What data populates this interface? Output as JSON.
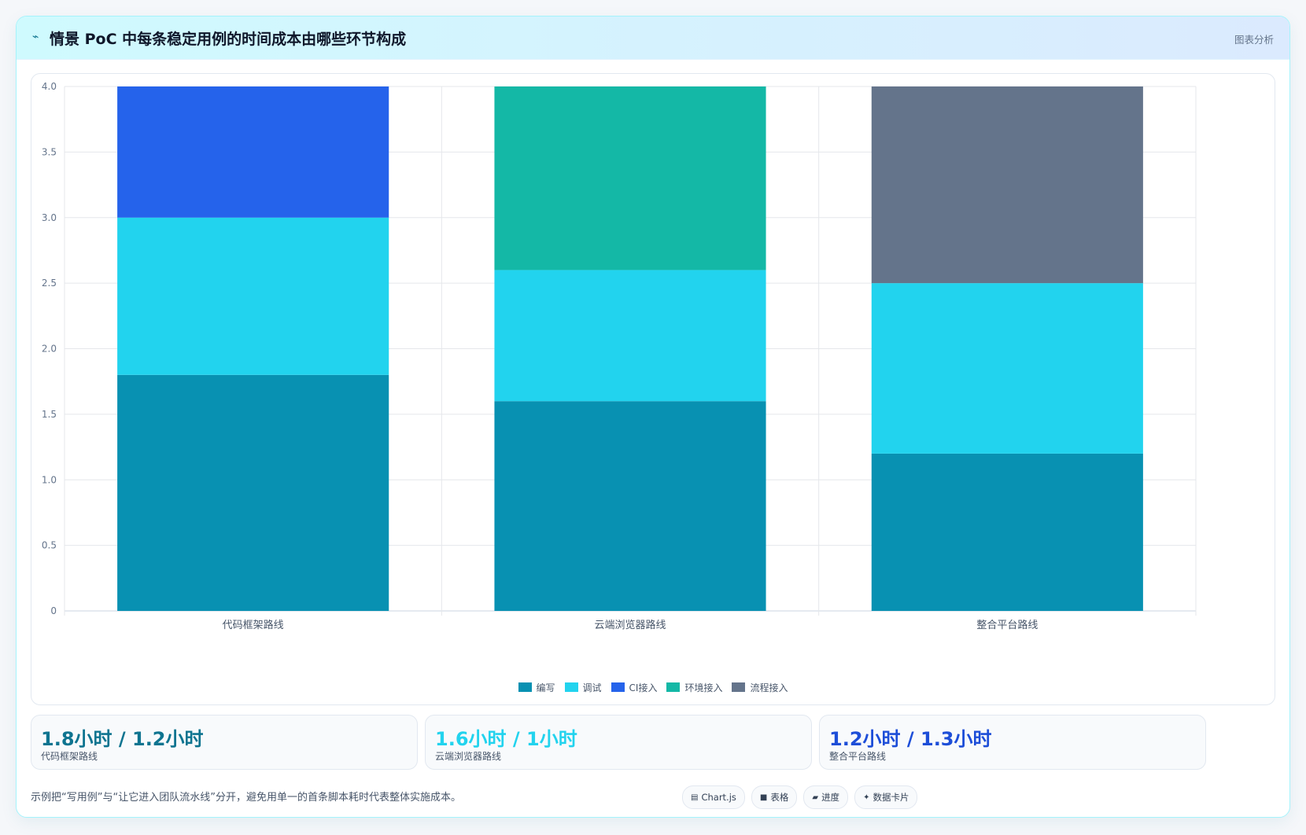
{
  "header": {
    "icon": "chart-line-icon",
    "title": "情景 PoC 中每条稳定用例的时间成本由哪些环节构成",
    "tag": "图表分析"
  },
  "chart_data": {
    "type": "bar",
    "stacked": true,
    "categories": [
      "代码框架路线",
      "云端浏览器路线",
      "整合平台路线"
    ],
    "series": [
      {
        "name": "编写",
        "color": "#0891b2",
        "values": [
          1.8,
          1.6,
          1.2
        ]
      },
      {
        "name": "调试",
        "color": "#22d3ee",
        "values": [
          1.2,
          1.0,
          1.3
        ]
      },
      {
        "name": "CI接入",
        "color": "#2563eb",
        "values": [
          1.0,
          0,
          0
        ]
      },
      {
        "name": "环境接入",
        "color": "#14b8a6",
        "values": [
          0,
          1.4,
          0
        ]
      },
      {
        "name": "流程接入",
        "color": "#64748b",
        "values": [
          0,
          0,
          1.5
        ]
      }
    ],
    "ylim": [
      0,
      4
    ],
    "yticks": [
      "0",
      "0.5",
      "1.0",
      "1.5",
      "2.0",
      "2.5",
      "3.0",
      "3.5",
      "4.0"
    ],
    "grid": true,
    "legend_position": "bottom"
  },
  "stats": [
    {
      "value": "1.8小时 / 1.2小时",
      "label": "代码框架路线",
      "color": "#0e7490"
    },
    {
      "value": "1.6小时 / 1小时",
      "label": "云端浏览器路线",
      "color": "#22d3ee"
    },
    {
      "value": "1.2小时 / 1.3小时",
      "label": "整合平台路线",
      "color": "#1d4ed8"
    }
  ],
  "footnote": "示例把“写用例”与“让它进入团队流水线”分开，避免用单一的首条脚本耗时代表整体实施成本。",
  "chips": [
    {
      "icon": "chart-icon",
      "glyph": "▤",
      "label": "Chart.js"
    },
    {
      "icon": "table-icon",
      "glyph": "■",
      "label": "表格"
    },
    {
      "icon": "progress-icon",
      "glyph": "▰",
      "label": "进度"
    },
    {
      "icon": "sparkle-icon",
      "glyph": "✦",
      "label": "数据卡片"
    }
  ]
}
